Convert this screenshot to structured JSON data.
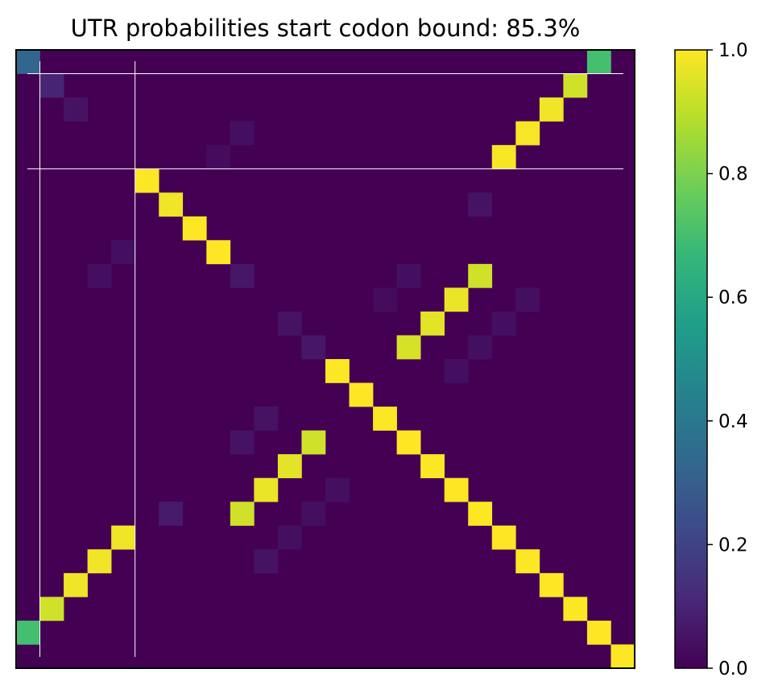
{
  "chart_data": {
    "type": "heatmap",
    "title": "UTR probabilities start codon bound: 85.3%",
    "n": 26,
    "grid": false,
    "axes_ticks": false,
    "colormap": {
      "name": "viridis",
      "stops": [
        "#440154",
        "#482878",
        "#3e4989",
        "#31688e",
        "#26828e",
        "#1f9e89",
        "#35b779",
        "#6ece58",
        "#b5de2b",
        "#fde725"
      ]
    },
    "colorbar": {
      "range": [
        0,
        1
      ],
      "ticks": [
        "0.0",
        "0.2",
        "0.4",
        "0.6",
        "0.8",
        "1.0"
      ],
      "tick_values": [
        0,
        0.2,
        0.4,
        0.6,
        0.8,
        1.0
      ]
    },
    "cells": [
      [
        0,
        0,
        0.33
      ],
      [
        0,
        24,
        0.7
      ],
      [
        1,
        1,
        0.1
      ],
      [
        1,
        23,
        0.93
      ],
      [
        2,
        2,
        0.05
      ],
      [
        2,
        22,
        0.98
      ],
      [
        3,
        9,
        0.04
      ],
      [
        3,
        21,
        0.99
      ],
      [
        4,
        8,
        0.03
      ],
      [
        4,
        20,
        0.99
      ],
      [
        5,
        5,
        1.0
      ],
      [
        6,
        6,
        0.98
      ],
      [
        6,
        19,
        0.05
      ],
      [
        7,
        7,
        1.0
      ],
      [
        8,
        8,
        1.0
      ],
      [
        8,
        4,
        0.04
      ],
      [
        9,
        9,
        0.06
      ],
      [
        9,
        3,
        0.04
      ],
      [
        9,
        16,
        0.04
      ],
      [
        9,
        19,
        0.93
      ],
      [
        10,
        15,
        0.03
      ],
      [
        10,
        18,
        0.97
      ],
      [
        10,
        21,
        0.04
      ],
      [
        11,
        11,
        0.05
      ],
      [
        11,
        17,
        0.96
      ],
      [
        11,
        20,
        0.04
      ],
      [
        12,
        12,
        0.06
      ],
      [
        12,
        16,
        0.94
      ],
      [
        12,
        19,
        0.04
      ],
      [
        13,
        13,
        1.0
      ],
      [
        13,
        18,
        0.04
      ],
      [
        14,
        14,
        1.0
      ],
      [
        15,
        15,
        1.0
      ],
      [
        15,
        10,
        0.05
      ],
      [
        16,
        16,
        1.0
      ],
      [
        16,
        9,
        0.05
      ],
      [
        16,
        12,
        0.93
      ],
      [
        17,
        17,
        1.0
      ],
      [
        17,
        11,
        0.96
      ],
      [
        18,
        18,
        1.0
      ],
      [
        18,
        10,
        0.97
      ],
      [
        18,
        13,
        0.04
      ],
      [
        19,
        19,
        1.0
      ],
      [
        19,
        6,
        0.07
      ],
      [
        19,
        9,
        0.93
      ],
      [
        19,
        12,
        0.04
      ],
      [
        20,
        20,
        1.0
      ],
      [
        20,
        4,
        0.98
      ],
      [
        20,
        11,
        0.04
      ],
      [
        21,
        21,
        1.0
      ],
      [
        21,
        3,
        0.98
      ],
      [
        21,
        10,
        0.05
      ],
      [
        22,
        22,
        1.0
      ],
      [
        22,
        2,
        0.98
      ],
      [
        23,
        23,
        1.0
      ],
      [
        23,
        1,
        0.93
      ],
      [
        24,
        24,
        1.0
      ],
      [
        24,
        0,
        0.7
      ],
      [
        25,
        25,
        1.0
      ]
    ],
    "guide_lines": {
      "vertical": [
        0.5,
        4.5
      ],
      "horizontal": [
        0.5,
        4.5
      ]
    }
  }
}
